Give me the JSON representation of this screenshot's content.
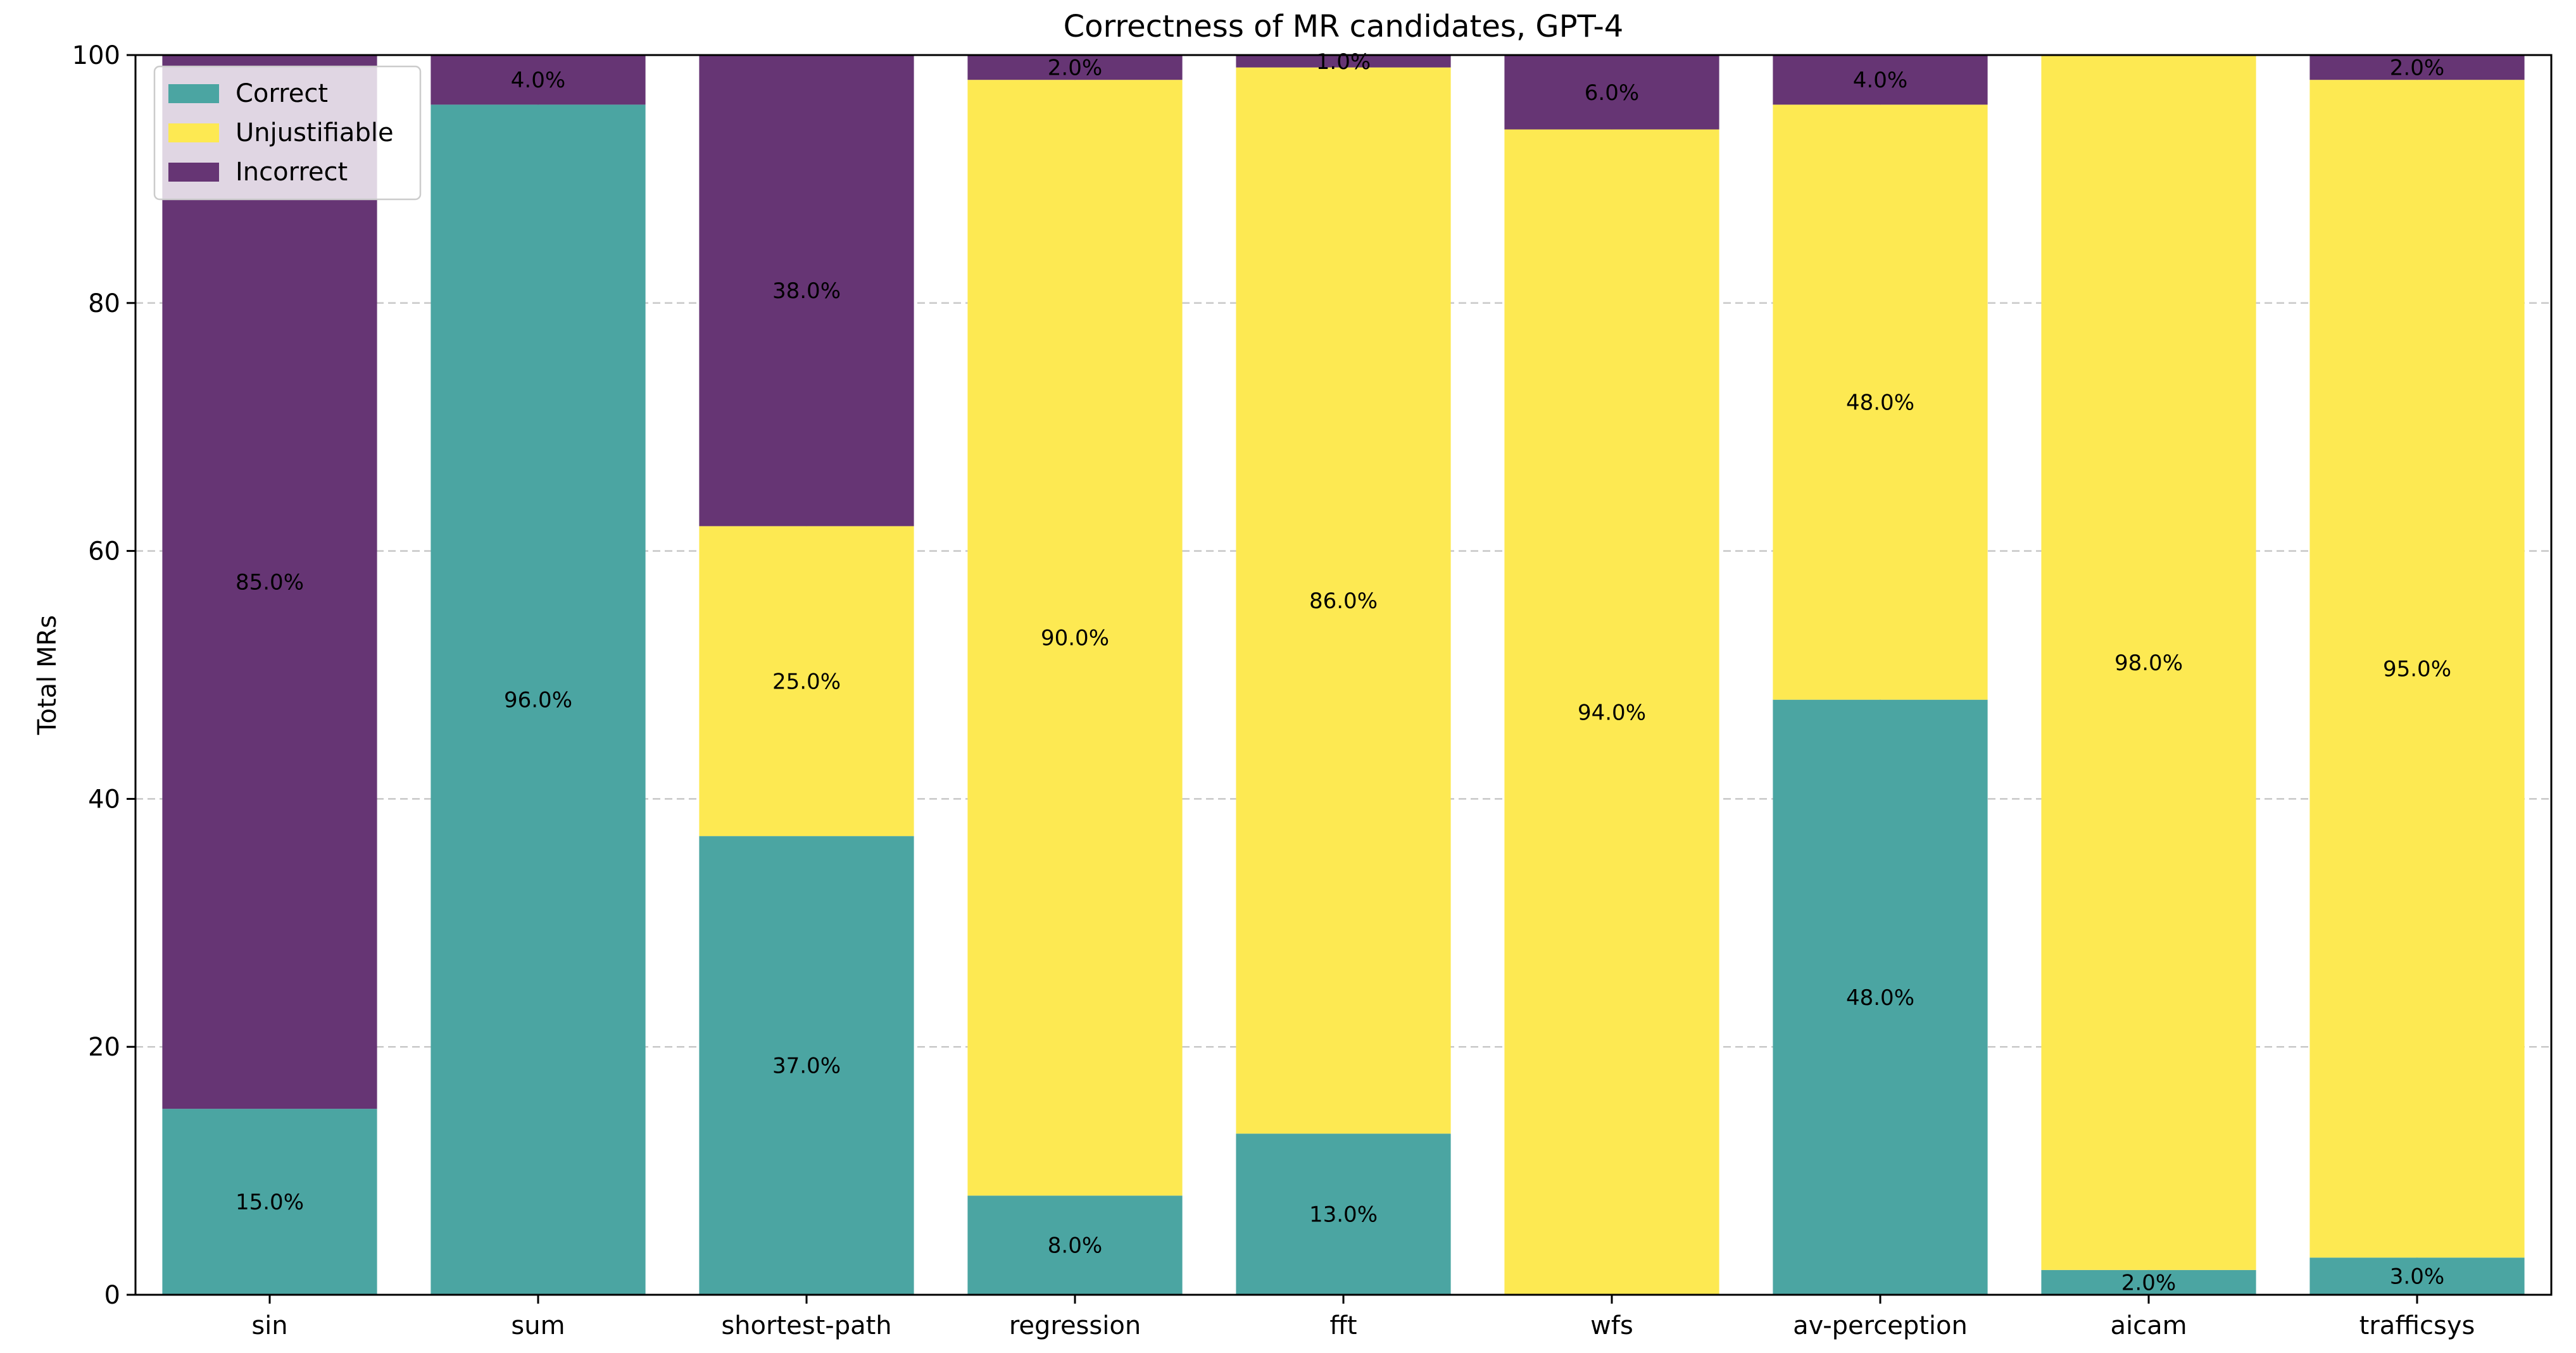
{
  "chart_data": {
    "type": "bar",
    "stacked": true,
    "title": "Correctness of MR candidates, GPT-4",
    "xlabel": "",
    "ylabel": "Total MRs",
    "ylim": [
      0,
      100
    ],
    "yticks": [
      0,
      20,
      40,
      60,
      80,
      100
    ],
    "grid": true,
    "legend_position": "top-left",
    "categories": [
      "sin",
      "sum",
      "shortest-path",
      "regression",
      "fft",
      "wfs",
      "av-perception",
      "aicam",
      "trafficsys"
    ],
    "series": [
      {
        "name": "Correct",
        "color": "#4ba5a2",
        "values": [
          15,
          96,
          37,
          8,
          13,
          0,
          48,
          2,
          3
        ],
        "labels": [
          "15.0%",
          "96.0%",
          "37.0%",
          "8.0%",
          "13.0%",
          "",
          "48.0%",
          "2.0%",
          "3.0%"
        ]
      },
      {
        "name": "Unjustifiable",
        "color": "#fde952",
        "values": [
          0,
          0,
          25,
          90,
          86,
          94,
          48,
          98,
          95
        ],
        "labels": [
          "",
          "",
          "25.0%",
          "90.0%",
          "86.0%",
          "94.0%",
          "48.0%",
          "98.0%",
          "95.0%"
        ]
      },
      {
        "name": "Incorrect",
        "color": "#663574",
        "values": [
          85,
          4,
          38,
          2,
          1,
          6,
          4,
          0,
          2
        ],
        "labels": [
          "85.0%",
          "4.0%",
          "38.0%",
          "2.0%",
          "1.0%",
          "6.0%",
          "4.0%",
          "",
          "2.0%"
        ]
      }
    ]
  }
}
